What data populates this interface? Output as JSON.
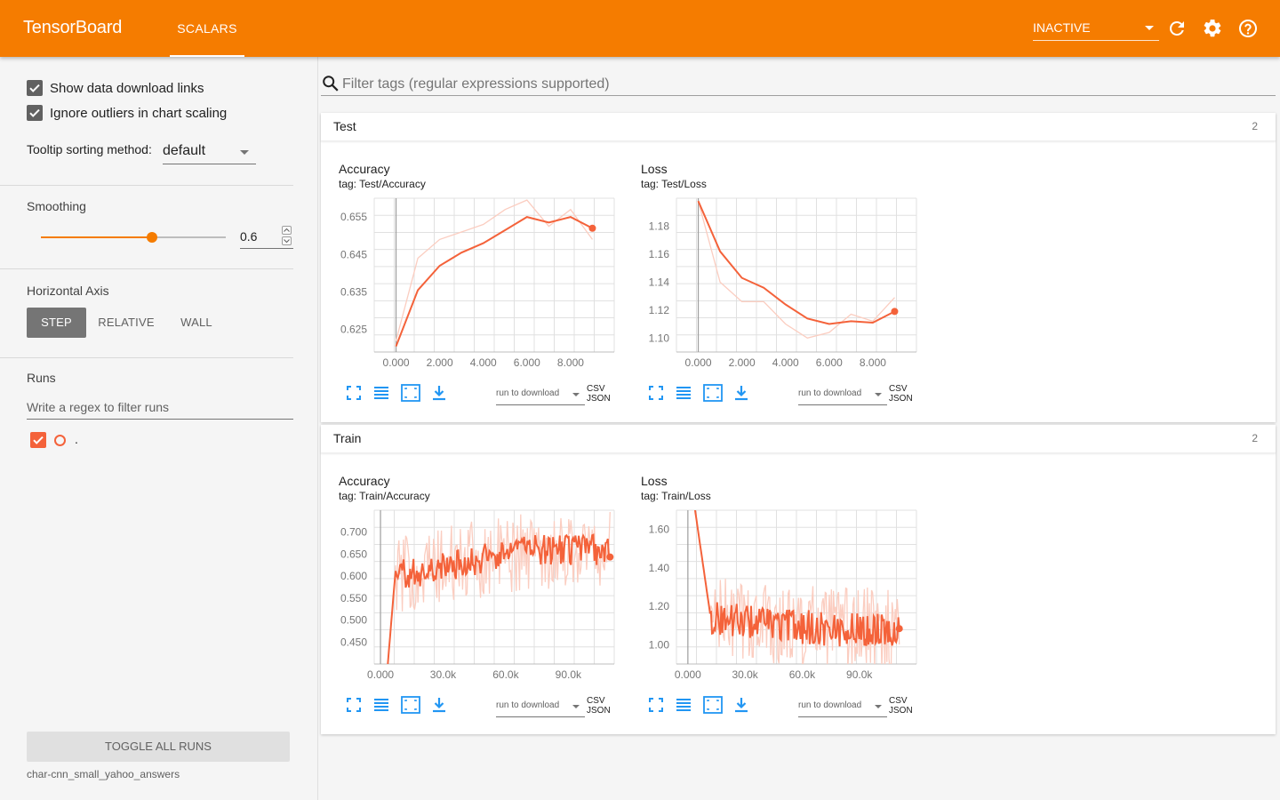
{
  "header": {
    "brand": "TensorBoard",
    "tabs": [
      {
        "label": "SCALARS",
        "active": true
      }
    ],
    "reload_status": "INACTIVE",
    "icons": [
      "refresh-icon",
      "settings-icon",
      "help-icon"
    ],
    "accent": "#f57c00"
  },
  "sidebar": {
    "options": [
      {
        "label": "Show data download links",
        "checked": true
      },
      {
        "label": "Ignore outliers in chart scaling",
        "checked": true
      }
    ],
    "tooltip_label": "Tooltip sorting method:",
    "tooltip_value": "default",
    "smoothing_title": "Smoothing",
    "smoothing_value": "0.6",
    "smoothing_fraction": 0.6,
    "axis_title": "Horizontal Axis",
    "axis_options": [
      "STEP",
      "RELATIVE",
      "WALL"
    ],
    "axis_selected": "STEP",
    "runs_title": "Runs",
    "runs_filter_placeholder": "Write a regex to filter runs",
    "runs": [
      {
        "label": ".",
        "checked": true,
        "color": "#f4623a"
      }
    ],
    "toggle_label": "TOGGLE ALL RUNS",
    "logdir": "char-cnn_small_yahoo_answers"
  },
  "main": {
    "filter_placeholder": "Filter tags (regular expressions supported)",
    "download_placeholder": "run to download",
    "csv_label": "CSV",
    "json_label": "JSON",
    "groups": [
      {
        "name": "Test",
        "count": "2",
        "cards": [
          {
            "title": "Accuracy",
            "tag": "tag: Test/Accuracy"
          },
          {
            "title": "Loss",
            "tag": "tag: Test/Loss"
          }
        ]
      },
      {
        "name": "Train",
        "count": "2",
        "cards": [
          {
            "title": "Accuracy",
            "tag": "tag: Train/Accuracy"
          },
          {
            "title": "Loss",
            "tag": "tag: Train/Loss"
          }
        ]
      }
    ]
  },
  "chart_data": [
    {
      "type": "line",
      "title": "Accuracy",
      "tag": "tag: Test/Accuracy",
      "xticks": [
        "0.000",
        "2.000",
        "4.000",
        "6.000",
        "8.000"
      ],
      "yticks": [
        "0.625",
        "0.635",
        "0.645",
        "0.655"
      ],
      "xlim": [
        -1,
        10
      ],
      "ylim": [
        0.619,
        0.66
      ],
      "series": [
        {
          "role": "raw",
          "color": "#fbcdc0",
          "x": [
            0,
            1,
            2,
            3,
            4,
            5,
            6,
            7,
            8,
            9
          ],
          "y": [
            0.622,
            0.644,
            0.649,
            0.651,
            0.653,
            0.657,
            0.6595,
            0.6525,
            0.657,
            0.649
          ]
        },
        {
          "role": "smoothed",
          "color": "#f4623a",
          "x": [
            0,
            1,
            2,
            3,
            4,
            5,
            6,
            7,
            8,
            9
          ],
          "y": [
            0.6205,
            0.6355,
            0.642,
            0.6455,
            0.648,
            0.6515,
            0.655,
            0.6535,
            0.655,
            0.652
          ]
        }
      ]
    },
    {
      "type": "line",
      "title": "Loss",
      "tag": "tag: Test/Loss",
      "xticks": [
        "0.000",
        "2.000",
        "4.000",
        "6.000",
        "8.000"
      ],
      "yticks": [
        "1.10",
        "1.12",
        "1.14",
        "1.16",
        "1.18"
      ],
      "xlim": [
        -1,
        10
      ],
      "ylim": [
        1.09,
        1.2
      ],
      "series": [
        {
          "role": "raw",
          "color": "#fbcdc0",
          "x": [
            0,
            1,
            2,
            3,
            4,
            5,
            6,
            7,
            8,
            9
          ],
          "y": [
            1.198,
            1.14,
            1.126,
            1.126,
            1.11,
            1.1,
            1.104,
            1.117,
            1.112,
            1.129
          ]
        },
        {
          "role": "smoothed",
          "color": "#f4623a",
          "x": [
            0,
            1,
            2,
            3,
            4,
            5,
            6,
            7,
            8,
            9
          ],
          "y": [
            1.198,
            1.162,
            1.143,
            1.136,
            1.124,
            1.114,
            1.11,
            1.112,
            1.111,
            1.119
          ]
        }
      ]
    },
    {
      "type": "line",
      "title": "Accuracy",
      "tag": "tag: Train/Accuracy",
      "xticks": [
        "0.000",
        "30.0k",
        "60.0k",
        "90.0k"
      ],
      "yticks": [
        "0.450",
        "0.500",
        "0.550",
        "0.600",
        "0.650",
        "0.700"
      ],
      "xlim": [
        -3000,
        112000
      ],
      "ylim": [
        0.4,
        0.75
      ],
      "noise": {
        "x_start": 3500,
        "x_end": 110000,
        "points": 200,
        "rise_end": 7000,
        "start_y": 0.4,
        "plateau_from": 0.6,
        "plateau_to": 0.66,
        "raw_amplitude": 0.09,
        "smoothed_amplitude": 0.035
      },
      "series": [
        {
          "role": "raw",
          "color": "#fbcdc0"
        },
        {
          "role": "smoothed",
          "color": "#f4623a"
        }
      ]
    },
    {
      "type": "line",
      "title": "Loss",
      "tag": "tag: Train/Loss",
      "xticks": [
        "0.000",
        "30.0k",
        "60.0k",
        "90.0k"
      ],
      "yticks": [
        "1.00",
        "1.20",
        "1.40",
        "1.60"
      ],
      "xlim": [
        -6000,
        120000
      ],
      "ylim": [
        0.9,
        1.7
      ],
      "noise": {
        "x_start": 3500,
        "x_end": 111000,
        "points": 200,
        "rise_end": 12000,
        "start_y": 1.72,
        "plateau_from": 1.14,
        "plateau_to": 1.08,
        "raw_amplitude": 0.22,
        "smoothed_amplitude": 0.09
      },
      "series": [
        {
          "role": "raw",
          "color": "#fbcdc0"
        },
        {
          "role": "smoothed",
          "color": "#f4623a"
        }
      ]
    }
  ]
}
